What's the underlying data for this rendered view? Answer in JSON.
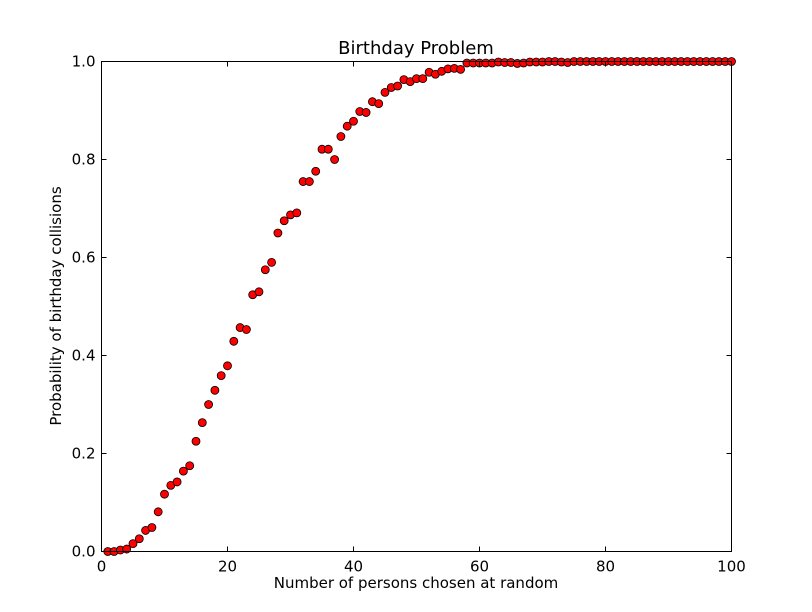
{
  "chart_data": {
    "type": "scatter",
    "title": "Birthday Problem",
    "xlabel": "Number of persons chosen at random",
    "ylabel": "Probability of birthday collisions",
    "xlim": [
      0,
      100
    ],
    "ylim": [
      0.0,
      1.0
    ],
    "xticks": [
      "0",
      "20",
      "40",
      "60",
      "80",
      "100"
    ],
    "yticks": [
      "0.0",
      "0.2",
      "0.4",
      "0.6",
      "0.8",
      "1.0"
    ],
    "grid": false,
    "legend": "none",
    "marker_color": "#ff0000",
    "marker_edge_color": "#000000",
    "series": [
      {
        "x": [
          1,
          2,
          3,
          4,
          5,
          6,
          7,
          8,
          9,
          10,
          11,
          12,
          13,
          14,
          15,
          16,
          17,
          18,
          19,
          20,
          21,
          22,
          23,
          24,
          25,
          26,
          27,
          28,
          29,
          30,
          31,
          32,
          33,
          34,
          35,
          36,
          37,
          38,
          39,
          40,
          41,
          42,
          43,
          44,
          45,
          46,
          47,
          48,
          49,
          50,
          51,
          52,
          53,
          54,
          55,
          56,
          57,
          58,
          59,
          60,
          61,
          62,
          63,
          64,
          65,
          66,
          67,
          68,
          69,
          70,
          71,
          72,
          73,
          74,
          75,
          76,
          77,
          78,
          79,
          80,
          81,
          82,
          83,
          84,
          85,
          86,
          87,
          88,
          89,
          90,
          91,
          92,
          93,
          94,
          95,
          96,
          97,
          98,
          99,
          100
        ],
        "y": [
          0.0,
          0.0,
          0.003,
          0.005,
          0.016,
          0.026,
          0.043,
          0.049,
          0.081,
          0.117,
          0.135,
          0.142,
          0.164,
          0.175,
          0.225,
          0.263,
          0.3,
          0.329,
          0.359,
          0.379,
          0.429,
          0.457,
          0.453,
          0.524,
          0.53,
          0.575,
          0.59,
          0.65,
          0.675,
          0.687,
          0.691,
          0.755,
          0.755,
          0.776,
          0.821,
          0.821,
          0.8,
          0.847,
          0.868,
          0.878,
          0.898,
          0.896,
          0.918,
          0.914,
          0.937,
          0.947,
          0.95,
          0.963,
          0.959,
          0.965,
          0.965,
          0.978,
          0.974,
          0.98,
          0.985,
          0.986,
          0.984,
          0.997,
          0.997,
          0.997,
          0.997,
          0.997,
          0.999,
          0.998,
          0.998,
          0.996,
          0.997,
          0.999,
          0.999,
          0.999,
          1.0,
          1.0,
          0.999,
          0.998,
          1.0,
          1.0,
          1.0,
          1.0,
          1.0,
          1.0,
          1.0,
          1.0,
          1.0,
          1.0,
          1.0,
          1.0,
          1.0,
          1.0,
          1.0,
          1.0,
          1.0,
          1.0,
          1.0,
          1.0,
          1.0,
          1.0,
          1.0,
          1.0,
          1.0,
          1.0
        ]
      }
    ]
  }
}
